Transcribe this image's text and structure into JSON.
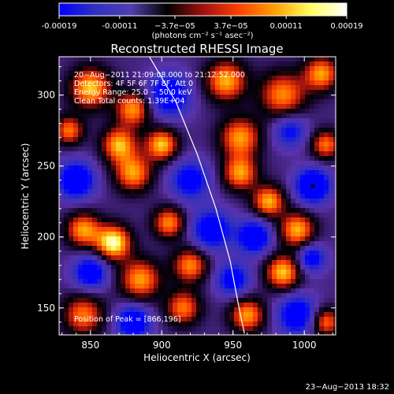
{
  "colorbar": {
    "ticks": [
      "-0.00019",
      "-0.00011",
      "−3.7e−05",
      "3.7e−05",
      "0.00011",
      "0.00019"
    ],
    "tick_values": [
      -0.00019,
      -0.00011,
      -3.7e-05,
      3.7e-05,
      0.00011,
      0.00019
    ],
    "units": "(photons cm⁻² s⁻¹ asec⁻²)",
    "range": [
      -0.00019,
      0.00019
    ]
  },
  "chart_data": {
    "type": "heatmap",
    "title": "Reconstructed RHESSI Image",
    "xlabel": "Heliocentric X (arcsec)",
    "ylabel": "Heliocentric Y (arcsec)",
    "xlim": [
      828,
      1022
    ],
    "ylim": [
      131,
      327
    ],
    "xticks": [
      850,
      900,
      950,
      1000
    ],
    "yticks": [
      150,
      200,
      250,
      300
    ],
    "annotations": [
      "20−Aug−2011 21:09:08.000 to 21:12:52.000",
      "Detectors: 4F 5F 6F 7F 8F, Att 0",
      "Energy Range: 25.0 − 50.0 keV",
      "Clean    Total counts: 1.39E+04"
    ],
    "peak_label": "Position of Peak = [866,196]",
    "peak": [
      866,
      196
    ],
    "marker": [
      1006,
      236
    ],
    "limb_curve": [
      [
        889,
        331
      ],
      [
        910,
        295
      ],
      [
        925,
        258
      ],
      [
        938,
        220
      ],
      [
        948,
        183
      ],
      [
        954,
        151
      ],
      [
        958,
        132
      ]
    ],
    "colormap": [
      "#0000ff",
      "#3030c0",
      "#5040b0",
      "#000000",
      "#a01010",
      "#ff4000",
      "#ffa000",
      "#ffff60",
      "#ffffff"
    ],
    "blobs": [
      {
        "x": 850,
        "y": 305,
        "amp": 1.0,
        "r": 14
      },
      {
        "x": 880,
        "y": 290,
        "amp": 0.9,
        "r": 12
      },
      {
        "x": 905,
        "y": 300,
        "amp": -0.8,
        "r": 15
      },
      {
        "x": 945,
        "y": 310,
        "amp": 0.95,
        "r": 14
      },
      {
        "x": 985,
        "y": 300,
        "amp": 0.85,
        "r": 16
      },
      {
        "x": 1012,
        "y": 315,
        "amp": 0.9,
        "r": 12
      },
      {
        "x": 835,
        "y": 275,
        "amp": 0.8,
        "r": 10
      },
      {
        "x": 870,
        "y": 265,
        "amp": 0.95,
        "r": 12
      },
      {
        "x": 900,
        "y": 265,
        "amp": 1.0,
        "r": 11
      },
      {
        "x": 955,
        "y": 270,
        "amp": 0.9,
        "r": 14
      },
      {
        "x": 990,
        "y": 275,
        "amp": -0.6,
        "r": 12
      },
      {
        "x": 1015,
        "y": 265,
        "amp": 0.8,
        "r": 10
      },
      {
        "x": 840,
        "y": 240,
        "amp": -0.9,
        "r": 13
      },
      {
        "x": 880,
        "y": 245,
        "amp": 0.9,
        "r": 13
      },
      {
        "x": 920,
        "y": 240,
        "amp": -0.7,
        "r": 14
      },
      {
        "x": 955,
        "y": 245,
        "amp": 0.9,
        "r": 12
      },
      {
        "x": 975,
        "y": 225,
        "amp": 0.95,
        "r": 11
      },
      {
        "x": 1006,
        "y": 236,
        "amp": -1.0,
        "r": 12
      },
      {
        "x": 845,
        "y": 205,
        "amp": 0.9,
        "r": 12
      },
      {
        "x": 866,
        "y": 196,
        "amp": 1.2,
        "r": 12
      },
      {
        "x": 905,
        "y": 210,
        "amp": 0.85,
        "r": 11
      },
      {
        "x": 935,
        "y": 205,
        "amp": -0.8,
        "r": 14
      },
      {
        "x": 965,
        "y": 200,
        "amp": -0.85,
        "r": 12
      },
      {
        "x": 995,
        "y": 205,
        "amp": 0.95,
        "r": 12
      },
      {
        "x": 850,
        "y": 175,
        "amp": -0.8,
        "r": 12
      },
      {
        "x": 885,
        "y": 170,
        "amp": 0.9,
        "r": 14
      },
      {
        "x": 920,
        "y": 180,
        "amp": 0.85,
        "r": 12
      },
      {
        "x": 950,
        "y": 170,
        "amp": -0.7,
        "r": 12
      },
      {
        "x": 985,
        "y": 175,
        "amp": 1.0,
        "r": 12
      },
      {
        "x": 1005,
        "y": 185,
        "amp": -0.7,
        "r": 10
      },
      {
        "x": 845,
        "y": 145,
        "amp": 0.8,
        "r": 14
      },
      {
        "x": 880,
        "y": 140,
        "amp": -0.85,
        "r": 12
      },
      {
        "x": 915,
        "y": 150,
        "amp": 0.8,
        "r": 12
      },
      {
        "x": 960,
        "y": 145,
        "amp": 0.9,
        "r": 12
      },
      {
        "x": 995,
        "y": 145,
        "amp": -0.8,
        "r": 14
      },
      {
        "x": 1015,
        "y": 140,
        "amp": 0.8,
        "r": 10
      }
    ]
  },
  "footer": {
    "timestamp": "23−Aug−2013 18:32"
  }
}
